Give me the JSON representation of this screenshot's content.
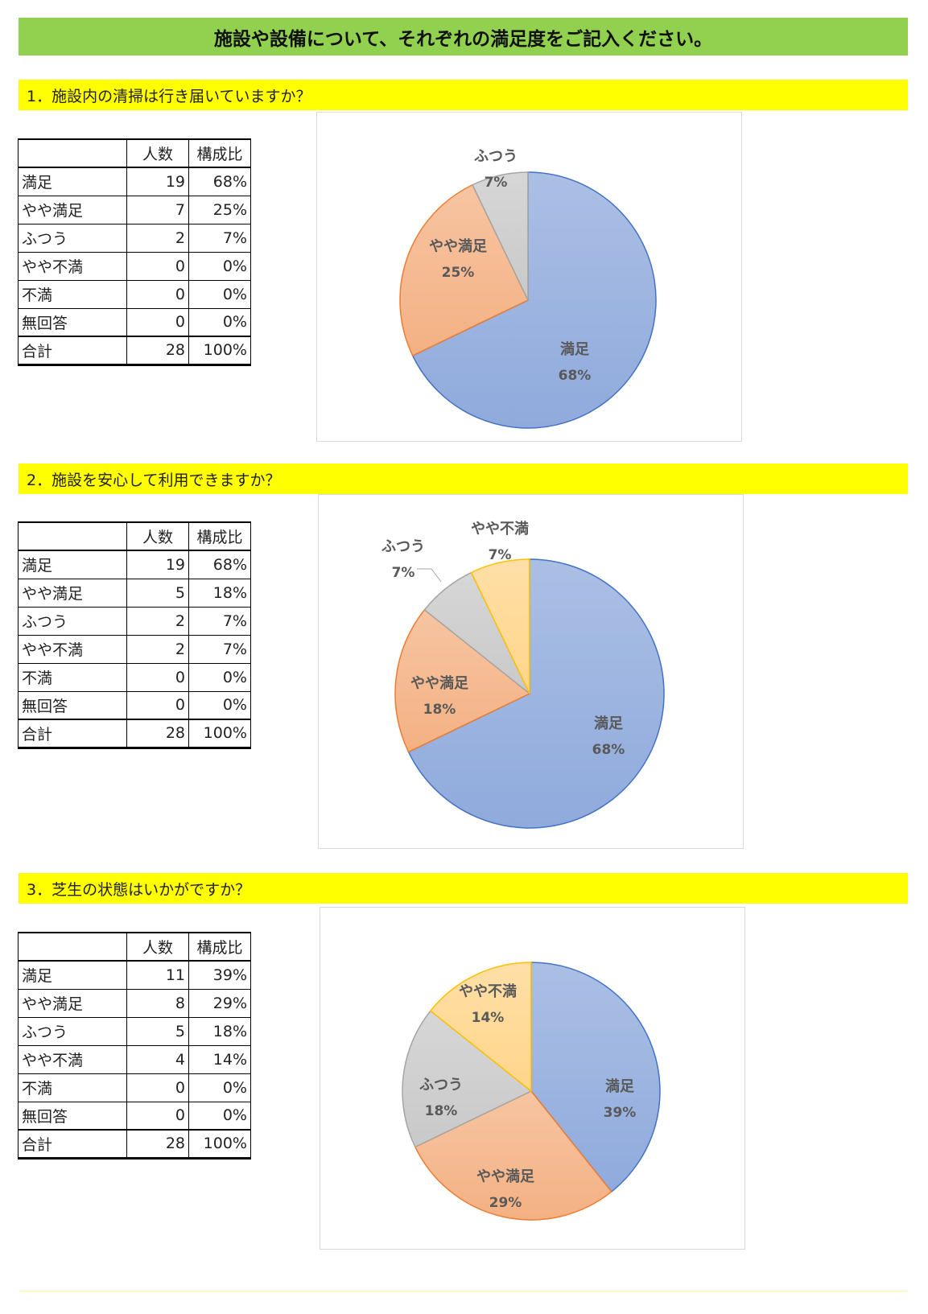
{
  "page": {
    "title": "施設や設備について、それぞれの満足度をご記入ください。"
  },
  "table_header": {
    "col1": "",
    "col2": "人数",
    "col3": "構成比"
  },
  "colors": {
    "満足": "#8faadc",
    "やや満足": "#f4b183",
    "ふつう": "#c9c9c9",
    "やや不満": "#ffd58a",
    "title_bg": "#92d050",
    "question_bg": "#ffff00"
  },
  "sections": [
    {
      "question": "1．施設内の清掃は行き届いていますか？",
      "rows": [
        {
          "label": "満足",
          "count": "19",
          "ratio": "68%"
        },
        {
          "label": "やや満足",
          "count": "7",
          "ratio": "25%"
        },
        {
          "label": "ふつう",
          "count": "2",
          "ratio": "7%"
        },
        {
          "label": "やや不満",
          "count": "0",
          "ratio": "0%"
        },
        {
          "label": "不満",
          "count": "0",
          "ratio": "0%"
        },
        {
          "label": "無回答",
          "count": "0",
          "ratio": "0%"
        }
      ],
      "total": {
        "label": "合計",
        "count": "28",
        "ratio": "100%"
      }
    },
    {
      "question": "2．施設を安心して利用できますか？",
      "rows": [
        {
          "label": "満足",
          "count": "19",
          "ratio": "68%"
        },
        {
          "label": "やや満足",
          "count": "5",
          "ratio": "18%"
        },
        {
          "label": "ふつう",
          "count": "2",
          "ratio": "7%"
        },
        {
          "label": "やや不満",
          "count": "2",
          "ratio": "7%"
        },
        {
          "label": "不満",
          "count": "0",
          "ratio": "0%"
        },
        {
          "label": "無回答",
          "count": "0",
          "ratio": "0%"
        }
      ],
      "total": {
        "label": "合計",
        "count": "28",
        "ratio": "100%"
      }
    },
    {
      "question": "3．芝生の状態はいかがですか？",
      "rows": [
        {
          "label": "満足",
          "count": "11",
          "ratio": "39%"
        },
        {
          "label": "やや満足",
          "count": "8",
          "ratio": "29%"
        },
        {
          "label": "ふつう",
          "count": "5",
          "ratio": "18%"
        },
        {
          "label": "やや不満",
          "count": "4",
          "ratio": "14%"
        },
        {
          "label": "不満",
          "count": "0",
          "ratio": "0%"
        },
        {
          "label": "無回答",
          "count": "0",
          "ratio": "0%"
        }
      ],
      "total": {
        "label": "合計",
        "count": "28",
        "ratio": "100%"
      }
    }
  ],
  "chart_data": [
    {
      "type": "pie",
      "title": "",
      "slices": [
        {
          "name": "満足",
          "value": 19,
          "label": "68%"
        },
        {
          "name": "やや満足",
          "value": 7,
          "label": "25%"
        },
        {
          "name": "ふつう",
          "value": 2,
          "label": "7%"
        }
      ]
    },
    {
      "type": "pie",
      "title": "",
      "slices": [
        {
          "name": "満足",
          "value": 19,
          "label": "68%"
        },
        {
          "name": "やや満足",
          "value": 5,
          "label": "18%"
        },
        {
          "name": "ふつう",
          "value": 2,
          "label": "7%"
        },
        {
          "name": "やや不満",
          "value": 2,
          "label": "7%"
        }
      ]
    },
    {
      "type": "pie",
      "title": "",
      "slices": [
        {
          "name": "満足",
          "value": 11,
          "label": "39%"
        },
        {
          "name": "やや満足",
          "value": 8,
          "label": "29%"
        },
        {
          "name": "ふつう",
          "value": 5,
          "label": "18%"
        },
        {
          "name": "やや不満",
          "value": 4,
          "label": "14%"
        }
      ]
    }
  ]
}
